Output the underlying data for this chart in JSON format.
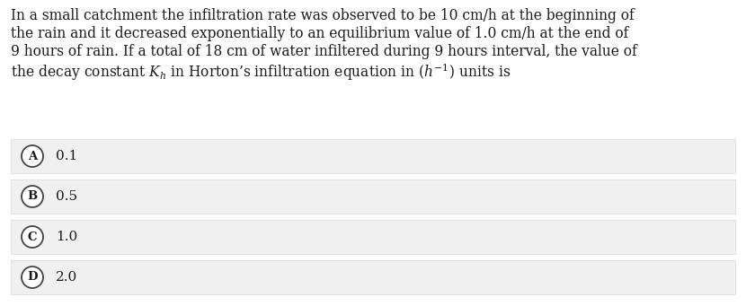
{
  "background_color": "#ffffff",
  "question_bg_color": "#ffffff",
  "question_text_lines": [
    "In a small catchment the infiltration rate was observed to be 10 cm/h at the beginning of",
    "the rain and it decreased exponentially to an equilibrium value of 1.0 cm/h at the end of",
    "9 hours of rain. If a total of 18 cm of water infiltered during 9 hours interval, the value of",
    "the decay constant $K_h$ in Horton’s infiltration equation in $(h^{-1})$ units is"
  ],
  "options": [
    {
      "label": "A",
      "value": "0.1"
    },
    {
      "label": "B",
      "value": "0.5"
    },
    {
      "label": "C",
      "value": "1.0"
    },
    {
      "label": "D",
      "value": "2.0"
    }
  ],
  "option_box_color": "#f0f0f0",
  "option_box_border_color": "#d8d8d8",
  "circle_color": "#ffffff",
  "circle_border_color": "#444444",
  "text_color": "#1a1a1a",
  "font_size_question": 11.2,
  "font_size_option": 11.0,
  "font_size_label": 9.5
}
